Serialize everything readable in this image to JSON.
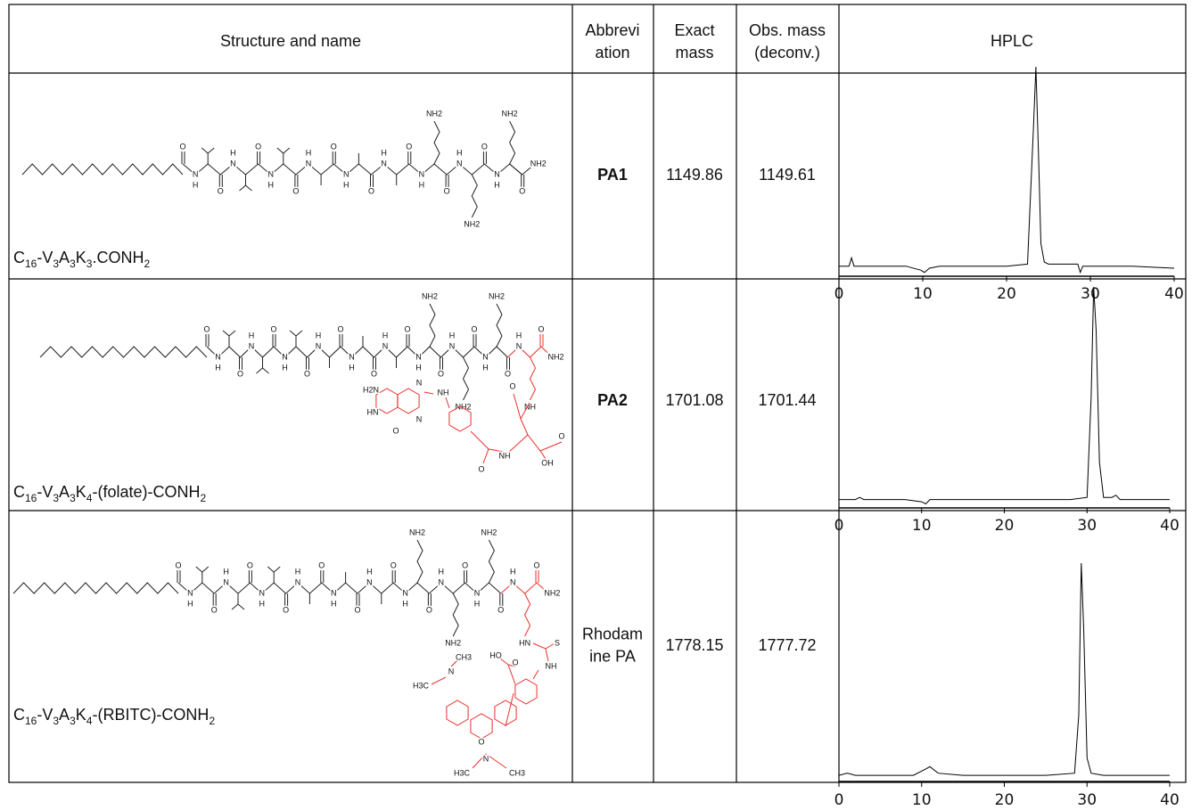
{
  "table": {
    "header": [
      [
        "Structure and name"
      ],
      [
        "Abbrevi",
        "ation"
      ],
      [
        "Exact",
        "mass"
      ],
      [
        "Obs. mass",
        "(deconv.)"
      ],
      [
        "HPLC"
      ]
    ],
    "rows": [
      {
        "name": [
          "C",
          "16",
          "-V",
          "3",
          "A",
          "3",
          "K",
          "3",
          ".CONH",
          "2"
        ],
        "structure": {
          "atoms": [
            "O",
            "N",
            "H",
            "O",
            "N",
            "H",
            "O",
            "N",
            "H",
            "O",
            "N",
            "H",
            "O",
            "N",
            "H",
            "O",
            "N",
            "H",
            "O",
            "N",
            "H",
            "O",
            "N",
            "H",
            "O",
            "N",
            "H",
            "NH2",
            "NH2",
            "NH2",
            "O",
            "NH2"
          ],
          "modification_atoms": [],
          "modification_color": "#e8302a"
        },
        "abbreviation": [
          "PA1"
        ],
        "abbreviation_bold": true,
        "exact_mass": 1149.86,
        "obs_mass": 1149.61,
        "hplc": {
          "type": "line",
          "color": "#000000",
          "xlim": [
            0,
            40
          ],
          "xticks": [
            0,
            10,
            20,
            30,
            40
          ],
          "ylim": [
            0,
            100
          ],
          "x": [
            0,
            1.2,
            1.5,
            1.8,
            2.5,
            5,
            8,
            9.8,
            10.2,
            10.8,
            12,
            15,
            20,
            22.5,
            23.2,
            23.5,
            23.8,
            24.1,
            24.5,
            25,
            27,
            28.5,
            28.8,
            29.1,
            30,
            35,
            40
          ],
          "values": [
            4,
            4,
            8,
            4,
            4,
            4,
            4,
            2,
            1,
            3,
            4,
            4,
            4,
            5,
            70,
            100,
            60,
            15,
            6,
            5,
            5,
            5,
            1,
            4,
            4,
            4,
            3
          ]
        }
      },
      {
        "name": [
          "C",
          "16",
          "-V",
          "3",
          "A",
          "3",
          "K",
          "4",
          "-(folate)-CONH",
          "2"
        ],
        "structure": {
          "atoms": [
            "O",
            "N",
            "H",
            "O",
            "N",
            "H",
            "O",
            "N",
            "H",
            "O",
            "N",
            "H",
            "O",
            "N",
            "H",
            "O",
            "N",
            "H",
            "O",
            "N",
            "H",
            "O",
            "N",
            "H",
            "O",
            "N",
            "H",
            "O",
            "NH2",
            "NH2",
            "NH2"
          ],
          "modification_atoms": [
            "N",
            "H",
            "O",
            "NH2",
            "NH",
            "O",
            "O",
            "OH",
            "NH",
            "O",
            "NH",
            "N",
            "N",
            "H2N",
            "HN",
            "O"
          ],
          "modification_color": "#e8302a"
        },
        "abbreviation": [
          "PA2"
        ],
        "abbreviation_bold": true,
        "exact_mass": 1701.08,
        "obs_mass": 1701.44,
        "hplc": {
          "type": "line",
          "color": "#000000",
          "xlim": [
            0,
            40
          ],
          "xticks": [
            0,
            10,
            20,
            30,
            40
          ],
          "ylim": [
            0,
            100
          ],
          "x": [
            0,
            2,
            2.5,
            3,
            8,
            10,
            10.5,
            11,
            12,
            20,
            28,
            30,
            30.5,
            30.8,
            31.1,
            31.5,
            32,
            33,
            33.5,
            34,
            40
          ],
          "values": [
            3,
            3,
            4,
            3,
            3,
            2,
            1,
            3,
            3,
            3,
            3,
            4,
            50,
            100,
            80,
            20,
            4,
            4,
            5,
            3,
            3
          ]
        }
      },
      {
        "name": [
          "C",
          "16",
          "-V",
          "3",
          "A",
          "3",
          "K",
          "4",
          "-(RBITC)-CONH",
          "2"
        ],
        "structure": {
          "atoms": [
            "O",
            "N",
            "H",
            "O",
            "N",
            "H",
            "O",
            "N",
            "H",
            "O",
            "N",
            "H",
            "O",
            "N",
            "H",
            "O",
            "N",
            "H",
            "O",
            "N",
            "H",
            "O",
            "N",
            "H",
            "O",
            "N",
            "H",
            "O",
            "NH2",
            "NH2",
            "NH2"
          ],
          "modification_atoms": [
            "N",
            "H",
            "O",
            "NH2",
            "HN",
            "S",
            "NH",
            "HO",
            "O",
            "CH3",
            "N",
            "H3C",
            "O",
            "N",
            "H3C",
            "CH3"
          ],
          "modification_color": "#e8302a"
        },
        "abbreviation": [
          "Rhodam",
          "ine PA"
        ],
        "abbreviation_bold": false,
        "exact_mass": 1778.15,
        "obs_mass": 1777.72,
        "hplc": {
          "type": "line",
          "color": "#000000",
          "xlim": [
            0,
            40
          ],
          "xticks": [
            0,
            10,
            20,
            30,
            40
          ],
          "ylim": [
            0,
            100
          ],
          "x": [
            0,
            1,
            2,
            5,
            9,
            10.5,
            11,
            12,
            15,
            20,
            25,
            28.5,
            29,
            29.3,
            29.6,
            30,
            30.5,
            32,
            35,
            40
          ],
          "values": [
            2,
            3,
            2,
            2,
            2,
            5,
            6,
            3,
            2,
            2,
            2,
            3,
            30,
            100,
            70,
            10,
            3,
            2,
            2,
            2
          ]
        }
      }
    ]
  }
}
